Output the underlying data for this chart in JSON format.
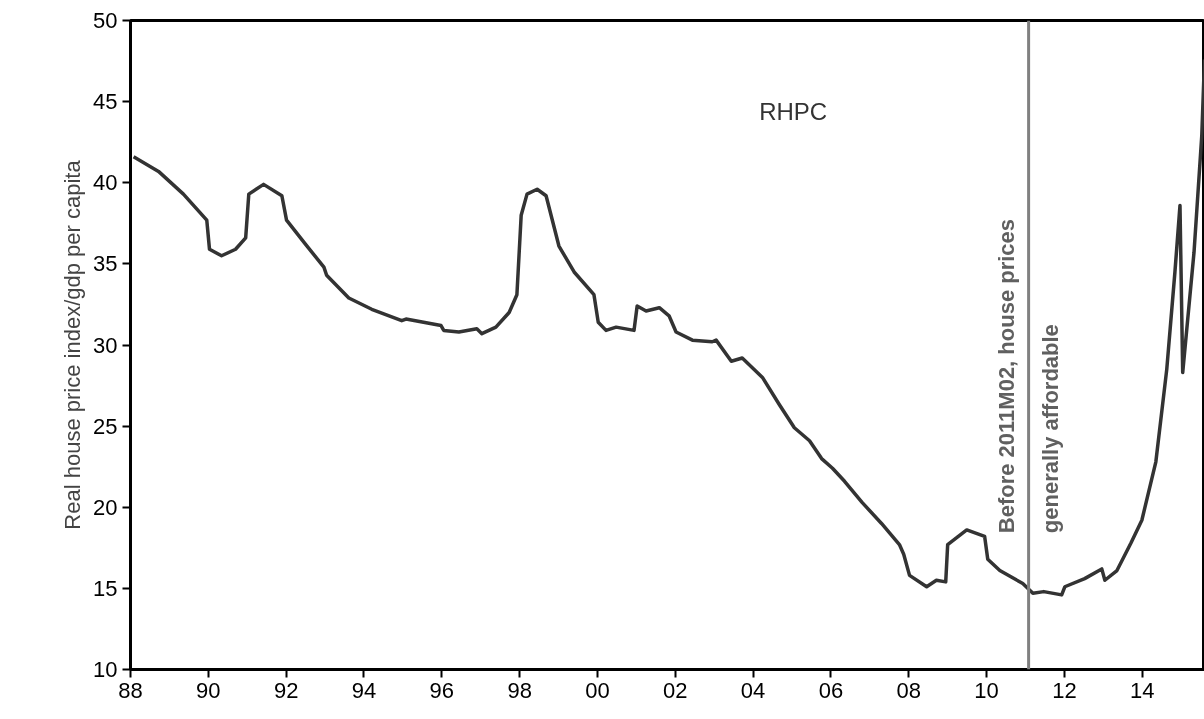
{
  "chart_data": {
    "type": "line",
    "ylabel": "Real house price index/gdp per capita",
    "x": [
      1988.08,
      1988.72,
      1989.36,
      1989.96,
      1990.03,
      1990.34,
      1990.7,
      1990.96,
      1991.04,
      1991.42,
      1991.89,
      1992.01,
      1992.5,
      1992.97,
      1993.04,
      1993.61,
      1994.2,
      1994.97,
      1995.08,
      1995.98,
      1996.05,
      1996.44,
      1996.9,
      1997.03,
      1997.39,
      1997.73,
      1997.93,
      1998.04,
      1998.19,
      1998.45,
      1998.68,
      1999.01,
      1999.4,
      1999.91,
      2000.02,
      2000.22,
      2000.48,
      2000.94,
      2001.02,
      2001.25,
      2001.59,
      2001.84,
      2002.02,
      2002.44,
      2002.95,
      2003.05,
      2003.44,
      2003.72,
      2004.24,
      2004.68,
      2005.06,
      2005.45,
      2005.76,
      2006.04,
      2006.35,
      2006.8,
      2007.3,
      2007.76,
      2007.87,
      2008.02,
      2008.46,
      2008.71,
      2008.95,
      2009.0,
      2009.49,
      2009.95,
      2010.03,
      2010.34,
      2010.93,
      2011.19,
      2011.47,
      2011.93,
      2012.01,
      2012.52,
      2012.96,
      2013.04,
      2013.35,
      2013.71,
      2013.99,
      2014.35,
      2014.63,
      2014.84,
      2014.97,
      2015.04,
      2015.33,
      2015.53,
      2015.6
    ],
    "series": [
      {
        "name": "RHPC",
        "color": "#333333",
        "values": [
          41.6,
          40.7,
          39.3,
          37.7,
          35.9,
          35.5,
          35.9,
          36.6,
          39.3,
          39.9,
          39.2,
          37.7,
          36.2,
          34.8,
          34.3,
          32.9,
          32.2,
          31.5,
          31.6,
          31.2,
          30.9,
          30.8,
          31.0,
          30.7,
          31.1,
          32.0,
          33.1,
          38.0,
          39.3,
          39.6,
          39.2,
          36.1,
          34.5,
          33.1,
          31.4,
          30.9,
          31.1,
          30.9,
          32.4,
          32.1,
          32.3,
          31.8,
          30.8,
          30.3,
          30.2,
          30.3,
          29.0,
          29.2,
          28.0,
          26.3,
          24.9,
          24.1,
          23.0,
          22.4,
          21.6,
          20.3,
          19.0,
          17.7,
          17.1,
          15.8,
          15.1,
          15.5,
          15.4,
          17.7,
          18.6,
          18.2,
          16.8,
          16.1,
          15.3,
          14.7,
          14.8,
          14.6,
          15.1,
          15.6,
          16.2,
          15.5,
          16.1,
          17.8,
          19.2,
          22.8,
          28.5,
          34.5,
          38.6,
          28.3,
          35.7,
          42.9,
          47.6
        ]
      }
    ],
    "xlim": [
      1988,
      2015.6
    ],
    "xticks": [
      {
        "value": 1988,
        "label": "88"
      },
      {
        "value": 1990,
        "label": "90"
      },
      {
        "value": 1992,
        "label": "92"
      },
      {
        "value": 1994,
        "label": "94"
      },
      {
        "value": 1996,
        "label": "96"
      },
      {
        "value": 1998,
        "label": "98"
      },
      {
        "value": 2000,
        "label": "00"
      },
      {
        "value": 2002,
        "label": "02"
      },
      {
        "value": 2004,
        "label": "04"
      },
      {
        "value": 2006,
        "label": "06"
      },
      {
        "value": 2008,
        "label": "08"
      },
      {
        "value": 2010,
        "label": "10"
      },
      {
        "value": 2012,
        "label": "12"
      },
      {
        "value": 2014,
        "label": "14"
      }
    ],
    "ylim": [
      10,
      50
    ],
    "yticks": [
      10,
      15,
      20,
      25,
      30,
      35,
      40,
      45,
      50
    ],
    "ref_lines": [
      {
        "axis": "x",
        "value": 2011.08,
        "label": "Before 2011M02, house prices generally affordable",
        "color": "#808080"
      }
    ],
    "grid": false,
    "marker": "none",
    "line_style": "solid"
  }
}
